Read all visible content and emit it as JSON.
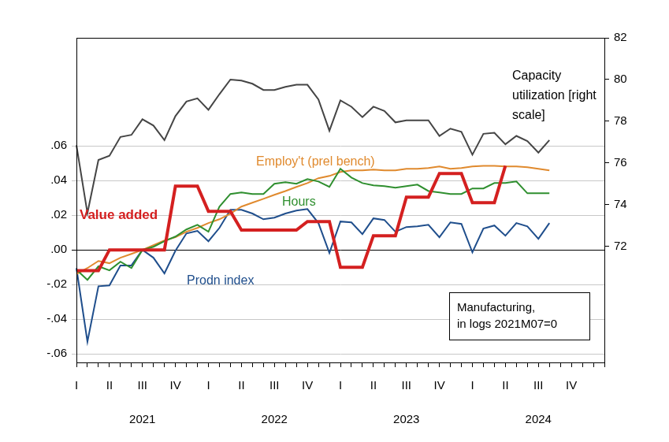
{
  "chart_data": {
    "type": "line",
    "categories": [
      "I",
      null,
      null,
      "II",
      null,
      null,
      [
        "III",
        "2021"
      ],
      null,
      null,
      "IV",
      null,
      null,
      "I",
      null,
      null,
      "II",
      null,
      null,
      [
        "III",
        "2022"
      ],
      null,
      null,
      "IV",
      null,
      null,
      "I",
      null,
      null,
      "II",
      null,
      null,
      [
        "III",
        "2023"
      ],
      null,
      null,
      "IV",
      null,
      null,
      "I",
      null,
      null,
      "II",
      null,
      null,
      [
        "III",
        "2024"
      ],
      null,
      null,
      "IV",
      null,
      null,
      null
    ],
    "series": [
      {
        "name": "Capacity utilization [right scale]",
        "color": "#454545",
        "axis": "y2",
        "line_style": "solid",
        "values": [
          76.85,
          73.6,
          76.15,
          76.35,
          77.25,
          77.35,
          78.1,
          77.8,
          77.1,
          78.25,
          78.95,
          79.1,
          78.55,
          79.3,
          80.0,
          79.95,
          79.8,
          79.5,
          79.5,
          79.65,
          79.75,
          79.75,
          79.05,
          77.55,
          79.0,
          78.7,
          78.2,
          78.7,
          78.5,
          77.95,
          78.05,
          78.05,
          78.05,
          77.3,
          77.65,
          77.5,
          76.4,
          77.4,
          77.45,
          76.9,
          77.3,
          77.05,
          76.5,
          77.1,
          null,
          null,
          null,
          null,
          null
        ]
      },
      {
        "name": "Prodn index",
        "color": "#1f4e8c",
        "line_style": "solid",
        "values": [
          -0.0105,
          -0.053,
          -0.021,
          -0.0205,
          -0.009,
          -0.009,
          0,
          -0.0045,
          -0.0136,
          -0.0005,
          0.0095,
          0.011,
          0.005,
          0.0127,
          0.0232,
          0.0232,
          0.021,
          0.0177,
          0.0186,
          0.021,
          0.0227,
          0.0236,
          0.0155,
          -0.0018,
          0.0164,
          0.0159,
          0.0091,
          0.0182,
          0.0173,
          0.0105,
          0.0132,
          0.0136,
          0.0145,
          0.0073,
          0.0159,
          0.015,
          -0.0014,
          0.0123,
          0.0141,
          0.0082,
          0.0155,
          0.0136,
          0.0064,
          0.0155,
          null,
          null,
          null,
          null,
          null
        ]
      },
      {
        "name": "Employ't (prel bench)",
        "color": "#e08a2e",
        "line_style": "solid",
        "values": [
          -0.014,
          -0.0105,
          -0.0064,
          -0.0077,
          -0.0045,
          -0.0023,
          0,
          0.0027,
          0.0055,
          0.0073,
          0.0105,
          0.0127,
          0.0155,
          0.0177,
          0.021,
          0.025,
          0.0273,
          0.0295,
          0.0318,
          0.034,
          0.0364,
          0.0386,
          0.0414,
          0.0427,
          0.045,
          0.0459,
          0.0459,
          0.0464,
          0.0459,
          0.0459,
          0.0468,
          0.0468,
          0.0473,
          0.0482,
          0.0468,
          0.0473,
          0.0482,
          0.0486,
          0.0486,
          0.0482,
          0.0482,
          0.0477,
          0.0468,
          0.0459,
          null,
          null,
          null,
          null,
          null
        ]
      },
      {
        "name": "Hours",
        "color": "#2f8f2f",
        "line_style": "solid",
        "values": [
          -0.0114,
          -0.0173,
          -0.0095,
          -0.0118,
          -0.0068,
          -0.0105,
          0,
          0.0018,
          0.005,
          0.0077,
          0.0118,
          0.0145,
          0.0105,
          0.025,
          0.0323,
          0.0332,
          0.0323,
          0.0323,
          0.0382,
          0.0391,
          0.0382,
          0.0409,
          0.0395,
          0.0364,
          0.0468,
          0.0418,
          0.0386,
          0.0373,
          0.0368,
          0.0359,
          0.0368,
          0.0377,
          0.034,
          0.0332,
          0.0323,
          0.0323,
          0.0355,
          0.0355,
          0.0386,
          0.0386,
          0.0395,
          0.0327,
          0.0327,
          0.0327,
          null,
          null,
          null,
          null,
          null
        ]
      },
      {
        "name": "Value added",
        "color": "#d42020",
        "line_style": "thick",
        "values": [
          -0.012,
          -0.012,
          -0.012,
          0,
          0,
          0,
          0,
          0,
          0,
          0.0368,
          0.0368,
          0.0368,
          0.0223,
          0.0223,
          0.0223,
          0.0114,
          0.0114,
          0.0114,
          0.0114,
          0.0114,
          0.0114,
          0.0164,
          0.0164,
          0.0164,
          -0.01,
          -0.01,
          -0.01,
          0.0082,
          0.0082,
          0.0082,
          0.0305,
          0.0305,
          0.0305,
          0.0441,
          0.0441,
          0.0441,
          0.0273,
          0.0273,
          0.0273,
          0.0486,
          null,
          null,
          null,
          null,
          null,
          null,
          null,
          null,
          null
        ]
      }
    ],
    "ylim": [
      -0.065,
      0.1225
    ],
    "yticks": [
      {
        "value": -0.06,
        "label": "-.06"
      },
      {
        "value": -0.04,
        "label": "-.04"
      },
      {
        "value": -0.02,
        "label": "-.02"
      },
      {
        "value": 0,
        "label": ".00"
      },
      {
        "value": 0.02,
        "label": ".02"
      },
      {
        "value": 0.04,
        "label": ".04"
      },
      {
        "value": 0.06,
        "label": ".06"
      }
    ],
    "y2lim": [
      66.45,
      82
    ],
    "y2ticks": [
      72,
      74,
      76,
      78,
      80,
      82
    ],
    "grid": true,
    "note": [
      "Manufacturing,",
      "in logs 2021M07=0"
    ]
  }
}
